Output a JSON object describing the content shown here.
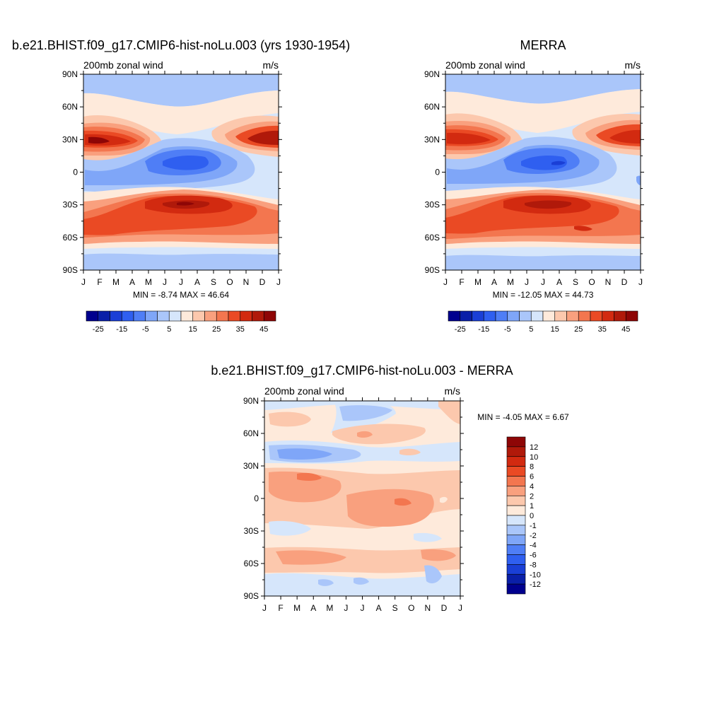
{
  "chart_data": [
    {
      "type": "heatmap",
      "title": "b.e21.BHIST.f09_g17.CMIP6-hist-noLu.003 (yrs 1930-1954)",
      "left_label": "200mb zonal wind",
      "right_label": "m/s",
      "stats": "MIN =  -8.74 MAX =  46.64",
      "x_ticks": [
        "J",
        "F",
        "M",
        "A",
        "M",
        "J",
        "J",
        "A",
        "S",
        "O",
        "N",
        "D",
        "J"
      ],
      "y_ticks": [
        "90N",
        "60N",
        "30N",
        "0",
        "30S",
        "60S",
        "90S"
      ],
      "colorbar_labels": [
        "-25",
        "-15",
        "-5",
        "5",
        "15",
        "25",
        "35",
        "45"
      ],
      "colorbar_colors": [
        "#00008e",
        "#0a1fa8",
        "#1a3fd6",
        "#2f5ff0",
        "#4f7ef6",
        "#7fa6f8",
        "#aac6fa",
        "#d6e6fb",
        "#feeadb",
        "#fcc8ad",
        "#f9a07e",
        "#f3764f",
        "#ea4a24",
        "#d22a10",
        "#b0190a",
        "#8e0606"
      ],
      "features": [
        "westerly jet ~30N in DJF (~45 m/s)",
        "easterlies over equator in JJA (~-8 m/s)",
        "SH subtropical jet ~30S peaking in JJA (~45 m/s)"
      ]
    },
    {
      "type": "heatmap",
      "title": "MERRA",
      "left_label": "200mb zonal wind",
      "right_label": "m/s",
      "stats": "MIN = -12.05 MAX =  44.73",
      "x_ticks": [
        "J",
        "F",
        "M",
        "A",
        "M",
        "J",
        "J",
        "A",
        "S",
        "O",
        "N",
        "D",
        "J"
      ],
      "y_ticks": [
        "90N",
        "60N",
        "30N",
        "0",
        "30S",
        "60S",
        "90S"
      ],
      "colorbar_labels": [
        "-25",
        "-15",
        "-5",
        "5",
        "15",
        "25",
        "35",
        "45"
      ],
      "colorbar_colors": [
        "#00008e",
        "#0a1fa8",
        "#1a3fd6",
        "#2f5ff0",
        "#4f7ef6",
        "#7fa6f8",
        "#aac6fa",
        "#d6e6fb",
        "#feeadb",
        "#fcc8ad",
        "#f9a07e",
        "#f3764f",
        "#ea4a24",
        "#d22a10",
        "#b0190a",
        "#8e0606"
      ]
    },
    {
      "type": "heatmap",
      "title": "b.e21.BHIST.f09_g17.CMIP6-hist-noLu.003 - MERRA",
      "left_label": "200mb zonal wind",
      "right_label": "m/s",
      "stats": "MIN =  -4.05 MAX =   6.67",
      "x_ticks": [
        "J",
        "F",
        "M",
        "A",
        "M",
        "J",
        "J",
        "A",
        "S",
        "O",
        "N",
        "D",
        "J"
      ],
      "y_ticks": [
        "90N",
        "60N",
        "30N",
        "0",
        "30S",
        "60S",
        "90S"
      ],
      "colorbar_labels": [
        "12",
        "10",
        "8",
        "6",
        "4",
        "2",
        "1",
        "0",
        "-1",
        "-2",
        "-4",
        "-6",
        "-8",
        "-10",
        "-12"
      ],
      "colorbar_colors": [
        "#8e0606",
        "#b0190a",
        "#d22a10",
        "#ea4a24",
        "#f3764f",
        "#f9a07e",
        "#fcc8ad",
        "#feeadb",
        "#d6e6fb",
        "#aac6fa",
        "#7fa6f8",
        "#4f7ef6",
        "#2f5ff0",
        "#1a3fd6",
        "#0a1fa8",
        "#00008e"
      ]
    }
  ]
}
